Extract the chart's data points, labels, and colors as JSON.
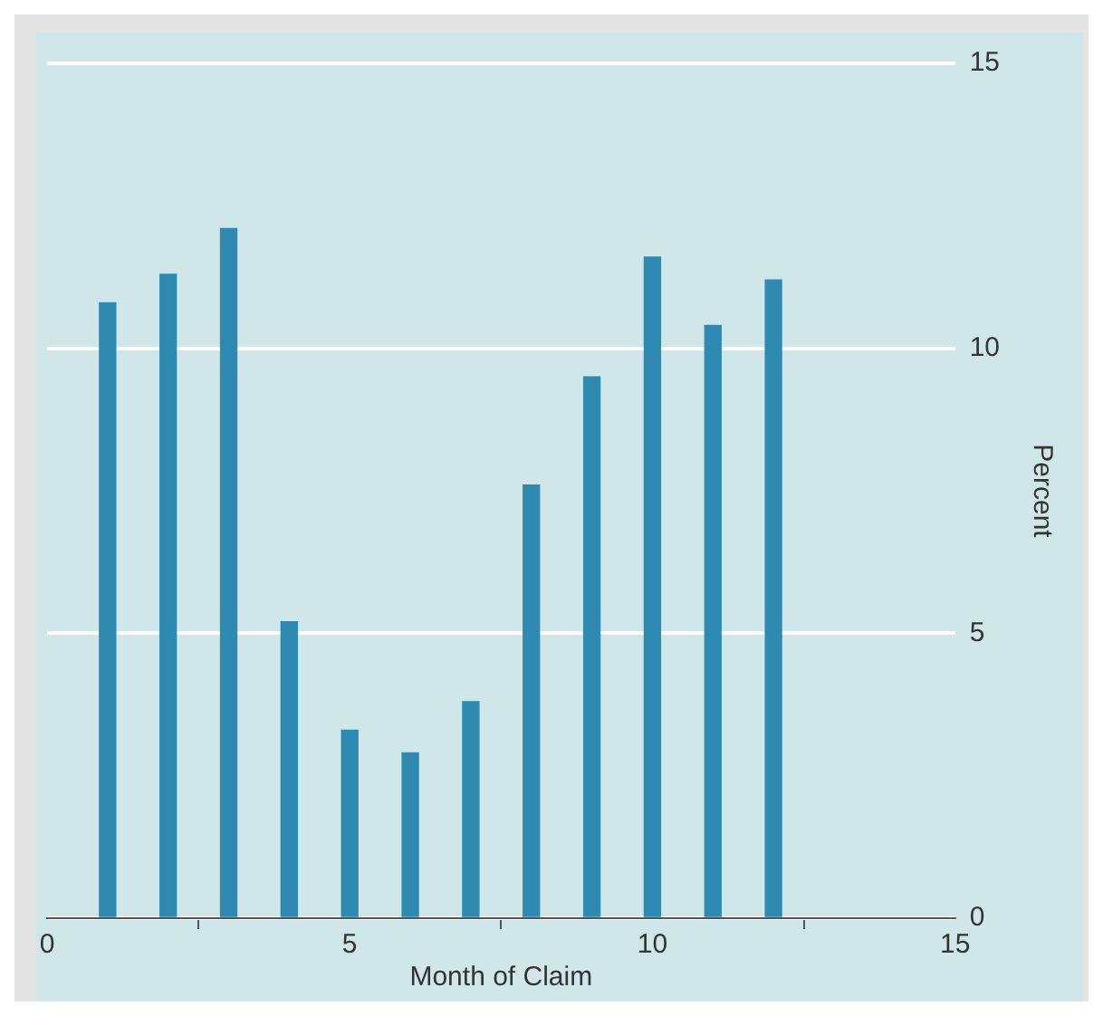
{
  "chart_data": {
    "type": "bar",
    "xlabel": "Month of Claim",
    "ylabel": "Percent",
    "x": [
      1,
      2,
      3,
      4,
      5,
      6,
      7,
      8,
      9,
      10,
      11,
      12
    ],
    "values": [
      10.8,
      11.3,
      12.1,
      5.2,
      3.3,
      2.9,
      3.8,
      7.6,
      9.5,
      11.6,
      10.4,
      11.2
    ],
    "color": "#2e8ab0",
    "xlim": [
      0,
      15
    ],
    "xticks": [
      0,
      5,
      10,
      15
    ],
    "ylim": [
      0,
      15
    ],
    "yticks": [
      0,
      5,
      10,
      15
    ],
    "grid": "y"
  }
}
